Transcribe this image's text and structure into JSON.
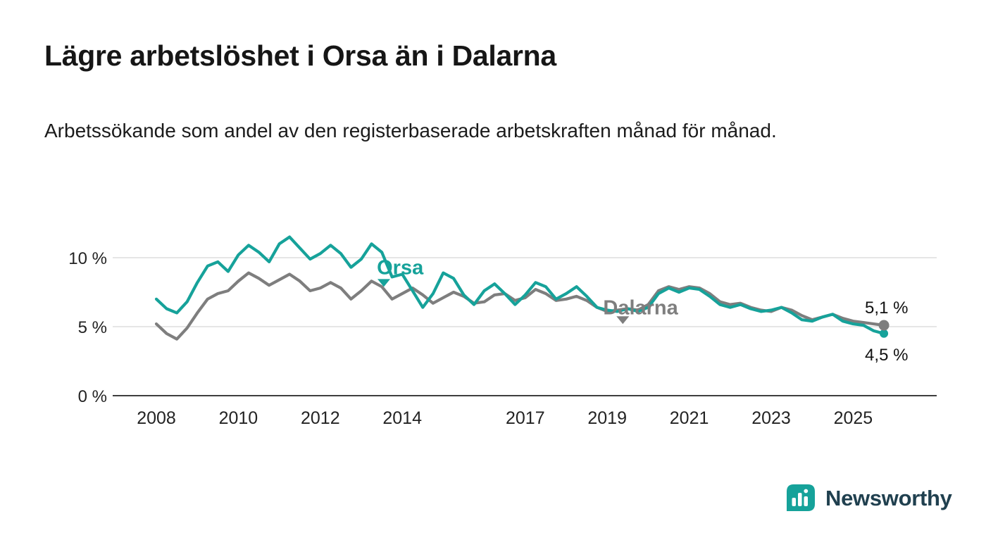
{
  "chart_data": {
    "type": "line",
    "title": "Lägre arbetslöshet i Orsa än i Dalarna",
    "subtitle": "Arbetssökande som andel av den registerbaserade arbetskraften månad för månad.",
    "unit": "%",
    "grid": "horizontal",
    "legend": "inline-labels",
    "xlim": [
      2007.6,
      2026.3
    ],
    "ylim": [
      0,
      12.5
    ],
    "x_ticks": [
      2008,
      2010,
      2012,
      2014,
      2017,
      2019,
      2021,
      2023,
      2025
    ],
    "y_ticks": [
      0,
      5,
      10
    ],
    "y_tick_labels": [
      "0 %",
      "5 %",
      "10 %"
    ],
    "x": [
      2008,
      2008.25,
      2008.5,
      2008.75,
      2009,
      2009.25,
      2009.5,
      2009.75,
      2010,
      2010.25,
      2010.5,
      2010.75,
      2011,
      2011.25,
      2011.5,
      2011.75,
      2012,
      2012.25,
      2012.5,
      2012.75,
      2013,
      2013.25,
      2013.5,
      2013.75,
      2014,
      2014.25,
      2014.5,
      2014.75,
      2015,
      2015.25,
      2015.5,
      2015.75,
      2016,
      2016.25,
      2016.5,
      2016.75,
      2017,
      2017.25,
      2017.5,
      2017.75,
      2018,
      2018.25,
      2018.5,
      2018.75,
      2019,
      2019.25,
      2019.5,
      2019.75,
      2020,
      2020.25,
      2020.5,
      2020.75,
      2021,
      2021.25,
      2021.5,
      2021.75,
      2022,
      2022.25,
      2022.5,
      2022.75,
      2023,
      2023.25,
      2023.5,
      2023.75,
      2024,
      2024.25,
      2024.5,
      2024.75,
      2025,
      2025.25,
      2025.5,
      2025.75
    ],
    "series": [
      {
        "name": "Orsa",
        "color": "#16a29a",
        "end_label": "4,5 %",
        "end_label_position": "below",
        "values": [
          7.0,
          6.3,
          6.0,
          6.8,
          8.2,
          9.4,
          9.7,
          9.0,
          10.2,
          10.9,
          10.4,
          9.7,
          11.0,
          11.5,
          10.7,
          9.9,
          10.3,
          10.9,
          10.3,
          9.3,
          9.9,
          11.0,
          10.4,
          8.6,
          8.8,
          7.6,
          6.4,
          7.4,
          8.9,
          8.5,
          7.3,
          6.6,
          7.6,
          8.1,
          7.4,
          6.6,
          7.3,
          8.2,
          7.9,
          7.0,
          7.4,
          7.9,
          7.2,
          6.4,
          6.2,
          6.1,
          6.3,
          6.1,
          6.4,
          7.4,
          7.8,
          7.5,
          7.8,
          7.7,
          7.2,
          6.6,
          6.4,
          6.6,
          6.3,
          6.1,
          6.2,
          6.4,
          6.0,
          5.5,
          5.4,
          5.7,
          5.9,
          5.4,
          5.2,
          5.1,
          4.7,
          4.5
        ]
      },
      {
        "name": "Dalarna",
        "color": "#7e7e7e",
        "end_label": "5,1 %",
        "end_label_position": "above",
        "values": [
          5.2,
          4.5,
          4.1,
          4.9,
          6.0,
          7.0,
          7.4,
          7.6,
          8.3,
          8.9,
          8.5,
          8.0,
          8.4,
          8.8,
          8.3,
          7.6,
          7.8,
          8.2,
          7.8,
          7.0,
          7.6,
          8.3,
          7.9,
          7.0,
          7.4,
          7.8,
          7.3,
          6.7,
          7.1,
          7.5,
          7.2,
          6.7,
          6.8,
          7.3,
          7.4,
          6.9,
          7.1,
          7.7,
          7.4,
          6.9,
          7.0,
          7.2,
          6.9,
          6.4,
          6.1,
          6.2,
          6.3,
          6.2,
          6.6,
          7.6,
          7.9,
          7.7,
          7.9,
          7.8,
          7.4,
          6.8,
          6.6,
          6.7,
          6.4,
          6.2,
          6.1,
          6.4,
          6.2,
          5.8,
          5.5,
          5.7,
          5.9,
          5.6,
          5.4,
          5.3,
          5.2,
          5.1
        ]
      }
    ],
    "annotations": [
      {
        "text": "Orsa",
        "color": "#16a29a",
        "label_x": 2013.38,
        "label_y": 8.8,
        "marker_x": 2013.55,
        "marker_y": 8.45
      },
      {
        "text": "Dalarna",
        "color": "#7e7e7e",
        "label_x": 2018.9,
        "label_y": 5.9,
        "marker_x": 2019.38,
        "marker_y": 5.75
      }
    ]
  },
  "footer": {
    "brand": "Newsworthy",
    "brand_color": "#16a29a",
    "brand_text_color": "#20404f"
  }
}
